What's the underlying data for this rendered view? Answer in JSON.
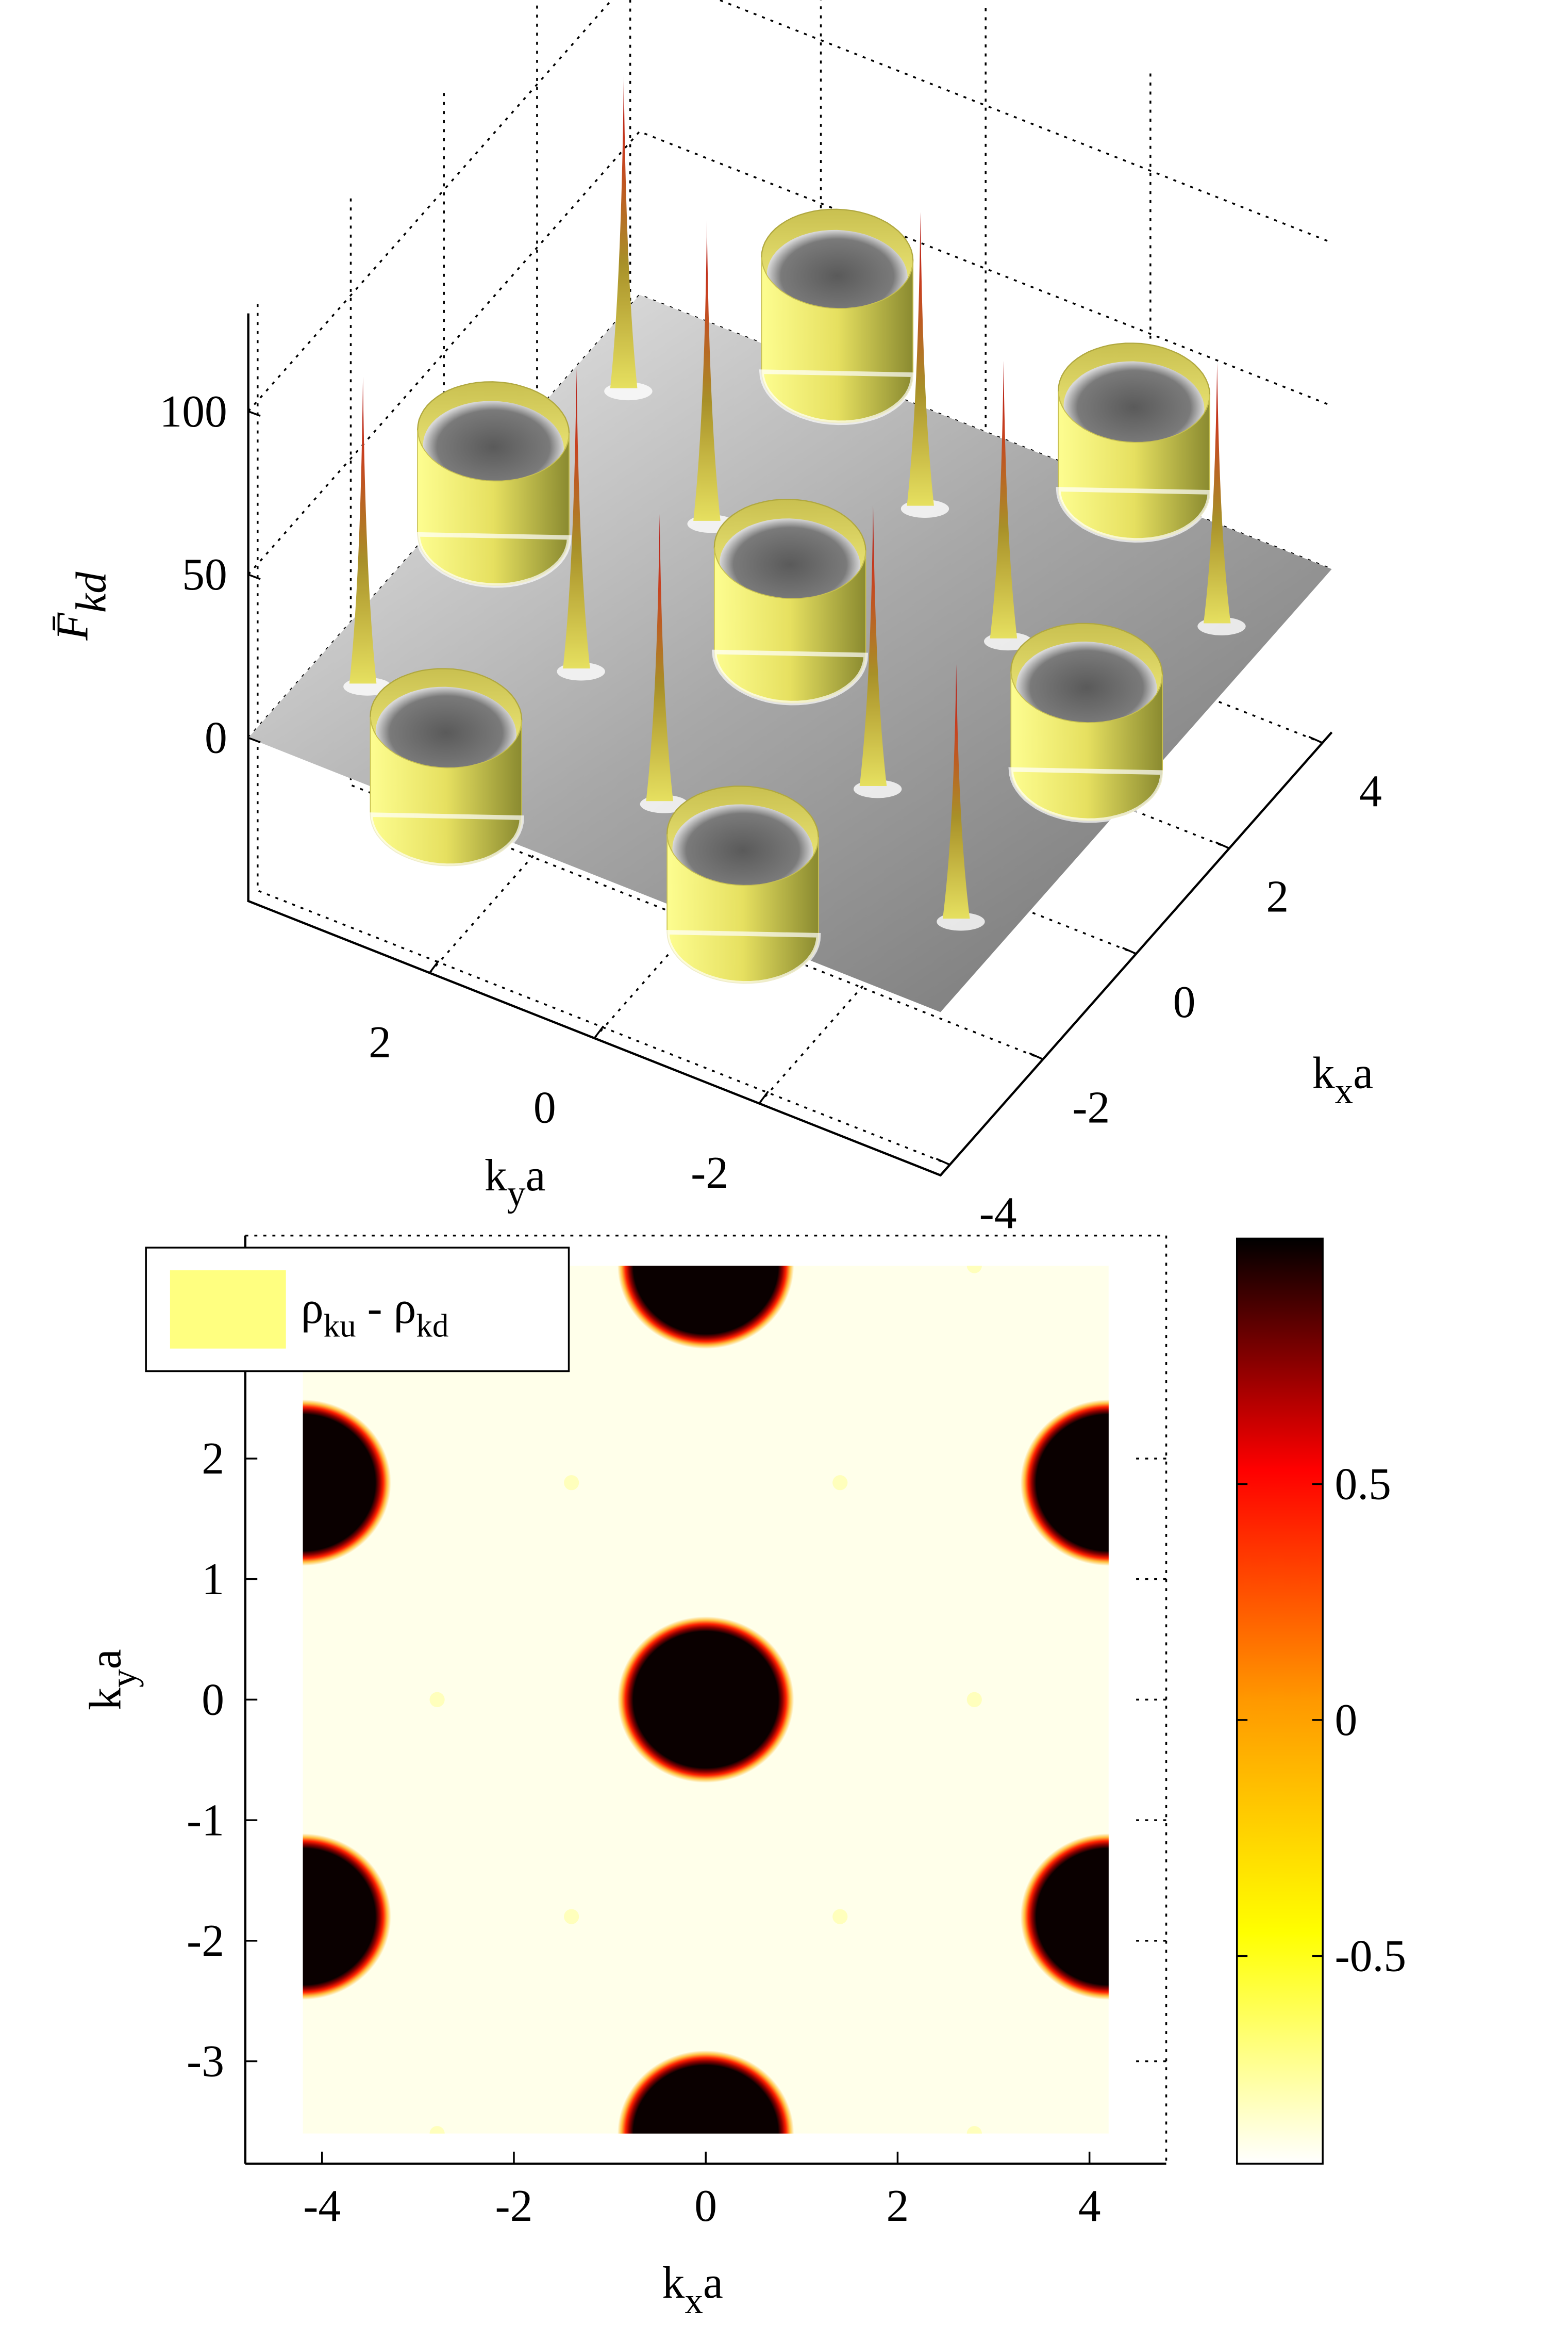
{
  "chart_data": [
    {
      "type": "surface3d",
      "zlabel": [
        "F̄",
        "kd"
      ],
      "xlabel": [
        "k",
        "x",
        "a"
      ],
      "ylabel": [
        "k",
        "y",
        "a"
      ],
      "xlim": [
        -4.2,
        4.2
      ],
      "ylim": [
        -4.2,
        4.2
      ],
      "zlim": [
        -50,
        130
      ],
      "xticks": [
        -4,
        -2,
        0,
        2,
        4
      ],
      "yticks": [
        -2,
        0,
        2
      ],
      "zticks": [
        0,
        50,
        100
      ],
      "surface_color": "#a8a8a8",
      "spike_color": "#b01010",
      "rim_color": "#e6e060",
      "spikes": {
        "x": [
          1.4,
          1.4,
          -1.4,
          -1.4,
          2.8,
          -2.8,
          2.8,
          2.8,
          -2.8,
          -2.8
        ],
        "y": [
          1.8,
          -1.8,
          1.8,
          -1.8,
          0,
          0,
          3.6,
          -3.6,
          3.6,
          -3.6
        ],
        "height": [
          92,
          85,
          92,
          86,
          90,
          88,
          96,
          80,
          94,
          78
        ]
      },
      "craters": {
        "x": [
          0,
          0,
          0,
          4.2,
          4.2,
          -4.2,
          -4.2
        ],
        "y": [
          0,
          3.6,
          -3.6,
          1.8,
          -1.8,
          1.8,
          -1.8
        ],
        "rim": [
          32,
          32,
          30,
          35,
          30,
          30,
          30
        ]
      },
      "crater_radius": 0.8
    },
    {
      "type": "heatmap",
      "xlabel": [
        "k",
        "x",
        "a"
      ],
      "ylabel": [
        "k",
        "y",
        "a"
      ],
      "xlim": [
        -4.8,
        4.8
      ],
      "ylim": [
        -3.85,
        3.85
      ],
      "extent_x": [
        -4.2,
        4.2
      ],
      "extent_y": [
        -3.6,
        3.6
      ],
      "xticks": [
        -4,
        -2,
        0,
        2,
        4
      ],
      "yticks": [
        -3,
        -2,
        -1,
        0,
        1,
        2
      ],
      "clim": [
        -0.94,
        1.02
      ],
      "cticks": [
        -0.5,
        0,
        0.5
      ],
      "colormap": [
        "#ffffff",
        "#ffff00",
        "#ff9900",
        "#ff0000",
        "#000000"
      ],
      "background_value": -0.9,
      "disks": {
        "x": [
          0,
          -4.2,
          4.2,
          -4.2,
          4.2,
          0,
          0
        ],
        "y": [
          0,
          1.8,
          1.8,
          -1.8,
          -1.8,
          3.6,
          -3.6
        ],
        "value": [
          1,
          1,
          1,
          1,
          1,
          1,
          1
        ]
      },
      "disk_radius_x": 0.8,
      "disk_radius_y": 0.6,
      "dots": {
        "x": [
          1.4,
          1.4,
          -1.4,
          -1.4,
          2.8,
          -2.8,
          2.8,
          2.8,
          -2.8,
          -2.8
        ],
        "y": [
          1.8,
          -1.8,
          1.8,
          -1.8,
          0,
          0,
          3.6,
          -3.6,
          3.6,
          -3.6
        ]
      },
      "dot_value": -0.75,
      "legend": [
        "ρ",
        "ku",
        " - ",
        "ρ",
        "kd"
      ],
      "legend_color": "#ffff80"
    }
  ]
}
